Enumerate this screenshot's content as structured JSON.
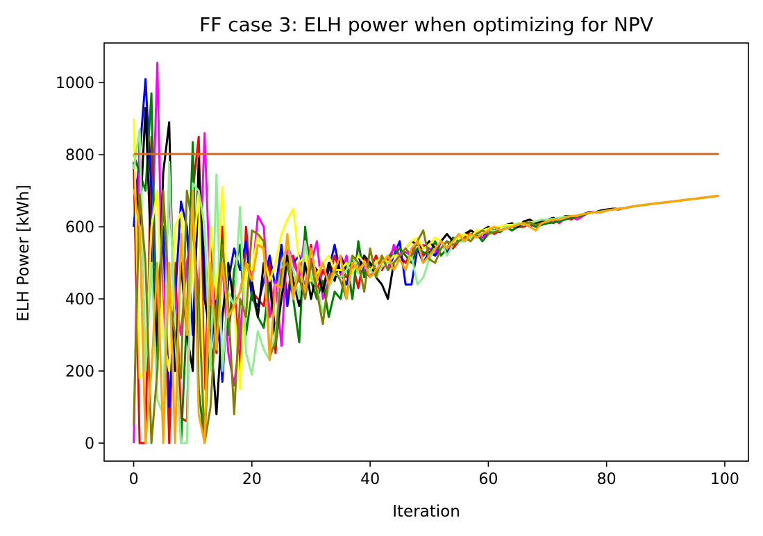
{
  "chart_data": {
    "type": "line",
    "title": "FF case 3: ELH power when optimizing for NPV",
    "xlabel": "Iteration",
    "ylabel": "ELH Power [kWh]",
    "xlim": [
      -5,
      104
    ],
    "ylim": [
      -50,
      1110
    ],
    "x_ticks": [
      0,
      20,
      40,
      60,
      80,
      100
    ],
    "y_ticks": [
      0,
      200,
      400,
      600,
      800,
      1000
    ],
    "grid": false,
    "legend": "none",
    "x": [
      0,
      1,
      2,
      3,
      4,
      5,
      6,
      7,
      8,
      9,
      10,
      11,
      12,
      13,
      14,
      15,
      16,
      17,
      18,
      19,
      20,
      21,
      22,
      23,
      24,
      25,
      26,
      27,
      28,
      29,
      30,
      31,
      32,
      33,
      34,
      35,
      36,
      37,
      38,
      39,
      40,
      41,
      42,
      43,
      44,
      45,
      46,
      47,
      48,
      49,
      50,
      51,
      52,
      53,
      54,
      55,
      56,
      57,
      58,
      59,
      60,
      61,
      62,
      63,
      64,
      65,
      66,
      67,
      68,
      69,
      70,
      71,
      72,
      73,
      74,
      75,
      76,
      77,
      78,
      79,
      80,
      81,
      82,
      83,
      84,
      85,
      86,
      87,
      88,
      89,
      90,
      91,
      92,
      93,
      94,
      95,
      96,
      97,
      98,
      99
    ],
    "series": [
      {
        "color": "#ff0000",
        "values": [
          770,
          0,
          0,
          850,
          300,
          600,
          0,
          500,
          70,
          60,
          700,
          850,
          150,
          600,
          250,
          600,
          300,
          450,
          200,
          600,
          420,
          400,
          380,
          500,
          250,
          550,
          400,
          520,
          450,
          430,
          550,
          420,
          480,
          450,
          520,
          470,
          460,
          500,
          430,
          520,
          480,
          520,
          480,
          510,
          540,
          520,
          500,
          530,
          560,
          520,
          540,
          520,
          540,
          560,
          540,
          560,
          570,
          590,
          580,
          570,
          590,
          580,
          590,
          600,
          590,
          600,
          600,
          610,
          600,
          610,
          620,
          610,
          620,
          630,
          620,
          630,
          630,
          640,
          640,
          640,
          645,
          650,
          648,
          652,
          655,
          658,
          660,
          662,
          664,
          666,
          668,
          670,
          672,
          674,
          676,
          678,
          680,
          682,
          684,
          686
        ]
      },
      {
        "color": "#0000ff",
        "values": [
          600,
          800,
          1010,
          700,
          250,
          600,
          100,
          400,
          670,
          600,
          300,
          720,
          500,
          250,
          400,
          170,
          450,
          540,
          480,
          560,
          400,
          380,
          450,
          520,
          430,
          550,
          380,
          500,
          520,
          420,
          500,
          480,
          420,
          480,
          550,
          470,
          440,
          500,
          520,
          470,
          500,
          460,
          520,
          480,
          520,
          560,
          440,
          440,
          540,
          500,
          530,
          520,
          560,
          530,
          550,
          560,
          560,
          580,
          580,
          570,
          590,
          585,
          590,
          595,
          600,
          600,
          610,
          600,
          610,
          610,
          615,
          620,
          620,
          625,
          630,
          630,
          635,
          640,
          640,
          640,
          645,
          648,
          650,
          652,
          655,
          658,
          660,
          662,
          664,
          666,
          668,
          670,
          672,
          674,
          676,
          678,
          680,
          682,
          684,
          686
        ]
      },
      {
        "color": "#ff00ff",
        "values": [
          0,
          870,
          200,
          500,
          1055,
          300,
          700,
          400,
          300,
          500,
          600,
          400,
          860,
          400,
          300,
          500,
          250,
          160,
          300,
          500,
          450,
          630,
          600,
          350,
          450,
          270,
          550,
          500,
          460,
          580,
          500,
          560,
          400,
          450,
          470,
          460,
          520,
          400,
          550,
          480,
          460,
          500,
          520,
          480,
          550,
          520,
          530,
          520,
          540,
          550,
          540,
          530,
          560,
          540,
          550,
          560,
          560,
          570,
          580,
          570,
          580,
          590,
          590,
          600,
          600,
          605,
          610,
          600,
          610,
          620,
          615,
          620,
          610,
          625,
          630,
          620,
          630,
          640,
          640,
          645,
          648,
          650,
          650,
          652,
          655,
          658,
          660,
          662,
          664,
          666,
          668,
          670,
          672,
          674,
          676,
          678,
          680,
          682,
          684,
          686
        ]
      },
      {
        "color": "#008000",
        "values": [
          800,
          750,
          700,
          970,
          200,
          680,
          400,
          300,
          0,
          350,
          835,
          150,
          0,
          380,
          300,
          565,
          300,
          480,
          550,
          300,
          420,
          350,
          320,
          450,
          270,
          400,
          500,
          400,
          280,
          600,
          450,
          400,
          450,
          350,
          420,
          400,
          500,
          400,
          560,
          460,
          500,
          480,
          500,
          520,
          520,
          540,
          520,
          500,
          540,
          530,
          520,
          560,
          520,
          540,
          570,
          560,
          560,
          580,
          580,
          560,
          580,
          590,
          585,
          600,
          590,
          600,
          605,
          610,
          600,
          605,
          610,
          612,
          615,
          620,
          625,
          628,
          632,
          638,
          640,
          642,
          645,
          648,
          650,
          652,
          655,
          658,
          660,
          662,
          664,
          666,
          668,
          670,
          672,
          674,
          676,
          678,
          680,
          682,
          684,
          686
        ]
      },
      {
        "color": "#000000",
        "values": [
          780,
          600,
          930,
          500,
          270,
          750,
          890,
          200,
          500,
          300,
          200,
          790,
          400,
          300,
          80,
          350,
          500,
          380,
          420,
          500,
          450,
          350,
          500,
          450,
          300,
          400,
          520,
          450,
          380,
          500,
          400,
          480,
          420,
          500,
          450,
          520,
          480,
          500,
          480,
          520,
          500,
          460,
          440,
          400,
          500,
          520,
          540,
          560,
          550,
          540,
          560,
          540,
          560,
          580,
          560,
          570,
          580,
          590,
          580,
          590,
          600,
          590,
          600,
          605,
          610,
          600,
          615,
          620,
          610,
          615,
          620,
          625,
          620,
          630,
          630,
          630,
          635,
          640,
          640,
          645,
          648,
          650,
          650,
          652,
          655,
          658,
          660,
          662,
          664,
          666,
          668,
          670,
          672,
          674,
          676,
          678,
          680,
          682,
          684,
          686
        ]
      },
      {
        "color": "#ffff00",
        "values": [
          900,
          180,
          200,
          600,
          700,
          300,
          200,
          600,
          640,
          300,
          500,
          700,
          0,
          600,
          400,
          710,
          350,
          380,
          150,
          500,
          480,
          580,
          520,
          450,
          500,
          580,
          620,
          650,
          500,
          520,
          450,
          470,
          500,
          520,
          480,
          480,
          500,
          470,
          520,
          500,
          480,
          500,
          520,
          500,
          520,
          520,
          540,
          560,
          570,
          540,
          550,
          570,
          560,
          540,
          560,
          570,
          580,
          570,
          590,
          590,
          595,
          600,
          600,
          605,
          605,
          610,
          610,
          612,
          615,
          620,
          620,
          622,
          625,
          628,
          630,
          632,
          635,
          638,
          640,
          642,
          645,
          648,
          650,
          652,
          655,
          658,
          660,
          662,
          664,
          666,
          668,
          670,
          672,
          674,
          676,
          678,
          680,
          682,
          684,
          686
        ]
      },
      {
        "color": "#90ee90",
        "values": [
          760,
          870,
          200,
          500,
          120,
          80,
          780,
          300,
          0,
          0,
          720,
          700,
          600,
          200,
          745,
          200,
          420,
          380,
          655,
          250,
          190,
          310,
          260,
          230,
          310,
          500,
          550,
          480,
          400,
          560,
          460,
          430,
          360,
          430,
          470,
          460,
          480,
          520,
          470,
          500,
          480,
          460,
          490,
          500,
          500,
          510,
          480,
          520,
          440,
          460,
          510,
          540,
          560,
          520,
          550,
          560,
          560,
          570,
          580,
          580,
          590,
          590,
          590,
          600,
          600,
          610,
          605,
          610,
          615,
          620,
          620,
          622,
          625,
          628,
          630,
          632,
          635,
          638,
          640,
          642,
          645,
          648,
          650,
          652,
          655,
          658,
          660,
          662,
          664,
          666,
          668,
          670,
          672,
          674,
          676,
          678,
          680,
          682,
          684,
          686
        ]
      },
      {
        "color": "#808000",
        "values": [
          50,
          690,
          500,
          0,
          200,
          700,
          400,
          300,
          180,
          700,
          600,
          400,
          0,
          100,
          380,
          550,
          380,
          80,
          400,
          350,
          590,
          580,
          560,
          240,
          280,
          480,
          500,
          420,
          460,
          400,
          500,
          420,
          330,
          460,
          480,
          450,
          400,
          520,
          500,
          420,
          540,
          460,
          520,
          480,
          500,
          520,
          540,
          520,
          560,
          590,
          510,
          500,
          540,
          560,
          550,
          560,
          570,
          560,
          580,
          590,
          580,
          585,
          590,
          595,
          600,
          605,
          610,
          612,
          605,
          610,
          615,
          620,
          620,
          625,
          630,
          630,
          635,
          638,
          640,
          640,
          645,
          648,
          650,
          652,
          655,
          658,
          660,
          662,
          664,
          666,
          668,
          670,
          672,
          674,
          676,
          678,
          680,
          682,
          684,
          686
        ]
      },
      {
        "color": "#ffa500",
        "values": [
          705,
          600,
          0,
          200,
          500,
          0,
          500,
          0,
          580,
          300,
          700,
          80,
          0,
          500,
          260,
          500,
          350,
          380,
          420,
          500,
          450,
          550,
          540,
          230,
          440,
          430,
          580,
          400,
          500,
          420,
          540,
          450,
          500,
          440,
          480,
          520,
          400,
          500,
          480,
          500,
          460,
          480,
          500,
          520,
          480,
          510,
          480,
          540,
          560,
          500,
          520,
          540,
          560,
          540,
          560,
          580,
          560,
          580,
          570,
          580,
          590,
          600,
          590,
          595,
          600,
          605,
          610,
          600,
          590,
          610,
          615,
          620,
          620,
          625,
          630,
          630,
          635,
          638,
          640,
          640,
          645,
          648,
          650,
          652,
          655,
          658,
          660,
          662,
          664,
          666,
          668,
          670,
          672,
          674,
          676,
          678,
          680,
          682,
          684,
          686
        ]
      },
      {
        "color": "#d2691e",
        "values": [
          802,
          802,
          802,
          802,
          802,
          802,
          802,
          802,
          802,
          802,
          802,
          802,
          802,
          802,
          802,
          802,
          802,
          802,
          802,
          802,
          802,
          802,
          802,
          802,
          802,
          802,
          802,
          802,
          802,
          802,
          802,
          802,
          802,
          802,
          802,
          802,
          802,
          802,
          802,
          802,
          802,
          802,
          802,
          802,
          802,
          802,
          802,
          802,
          802,
          802,
          802,
          802,
          802,
          802,
          802,
          802,
          802,
          802,
          802,
          802,
          802,
          802,
          802,
          802,
          802,
          802,
          802,
          802,
          802,
          802,
          802,
          802,
          802,
          802,
          802,
          802,
          802,
          802,
          802,
          802,
          802,
          802,
          802,
          802,
          802,
          802,
          802,
          802,
          802,
          802,
          802,
          802,
          802,
          802,
          802,
          802,
          802,
          802,
          802,
          802
        ]
      }
    ]
  }
}
